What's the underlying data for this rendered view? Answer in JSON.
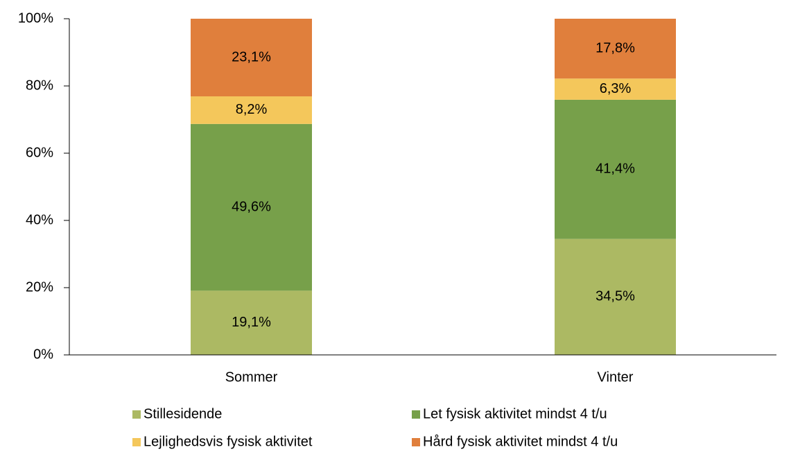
{
  "chart_data": {
    "type": "stacked_bar",
    "categories": [
      "Sommer",
      "Vinter"
    ],
    "series": [
      {
        "name": "Stillesidende",
        "color": "#acb963",
        "values": [
          19.1,
          34.5
        ],
        "value_labels": [
          "19,1%",
          "34,5%"
        ]
      },
      {
        "name": "Let fysisk aktivitet mindst 4 t/u",
        "color": "#77a04a",
        "values": [
          49.6,
          41.4
        ],
        "value_labels": [
          "49,6%",
          "41,4%"
        ]
      },
      {
        "name": "Lejlighedsvis fysisk aktivitet",
        "color": "#f4c75b",
        "values": [
          8.2,
          6.3
        ],
        "value_labels": [
          "8,2%",
          "6,3%"
        ]
      },
      {
        "name": "Hård fysisk aktivitet mindst 4 t/u",
        "color": "#e07f3c",
        "values": [
          23.1,
          17.8
        ],
        "value_labels": [
          "23,1%",
          "17,8%"
        ]
      }
    ],
    "ylim": [
      0,
      100
    ],
    "yticks": [
      {
        "value": 0,
        "label": "0%"
      },
      {
        "value": 20,
        "label": "20%"
      },
      {
        "value": 40,
        "label": "40%"
      },
      {
        "value": 60,
        "label": "60%"
      },
      {
        "value": 80,
        "label": "80%"
      },
      {
        "value": 100,
        "label": "100%"
      }
    ],
    "legend": "bottom"
  }
}
